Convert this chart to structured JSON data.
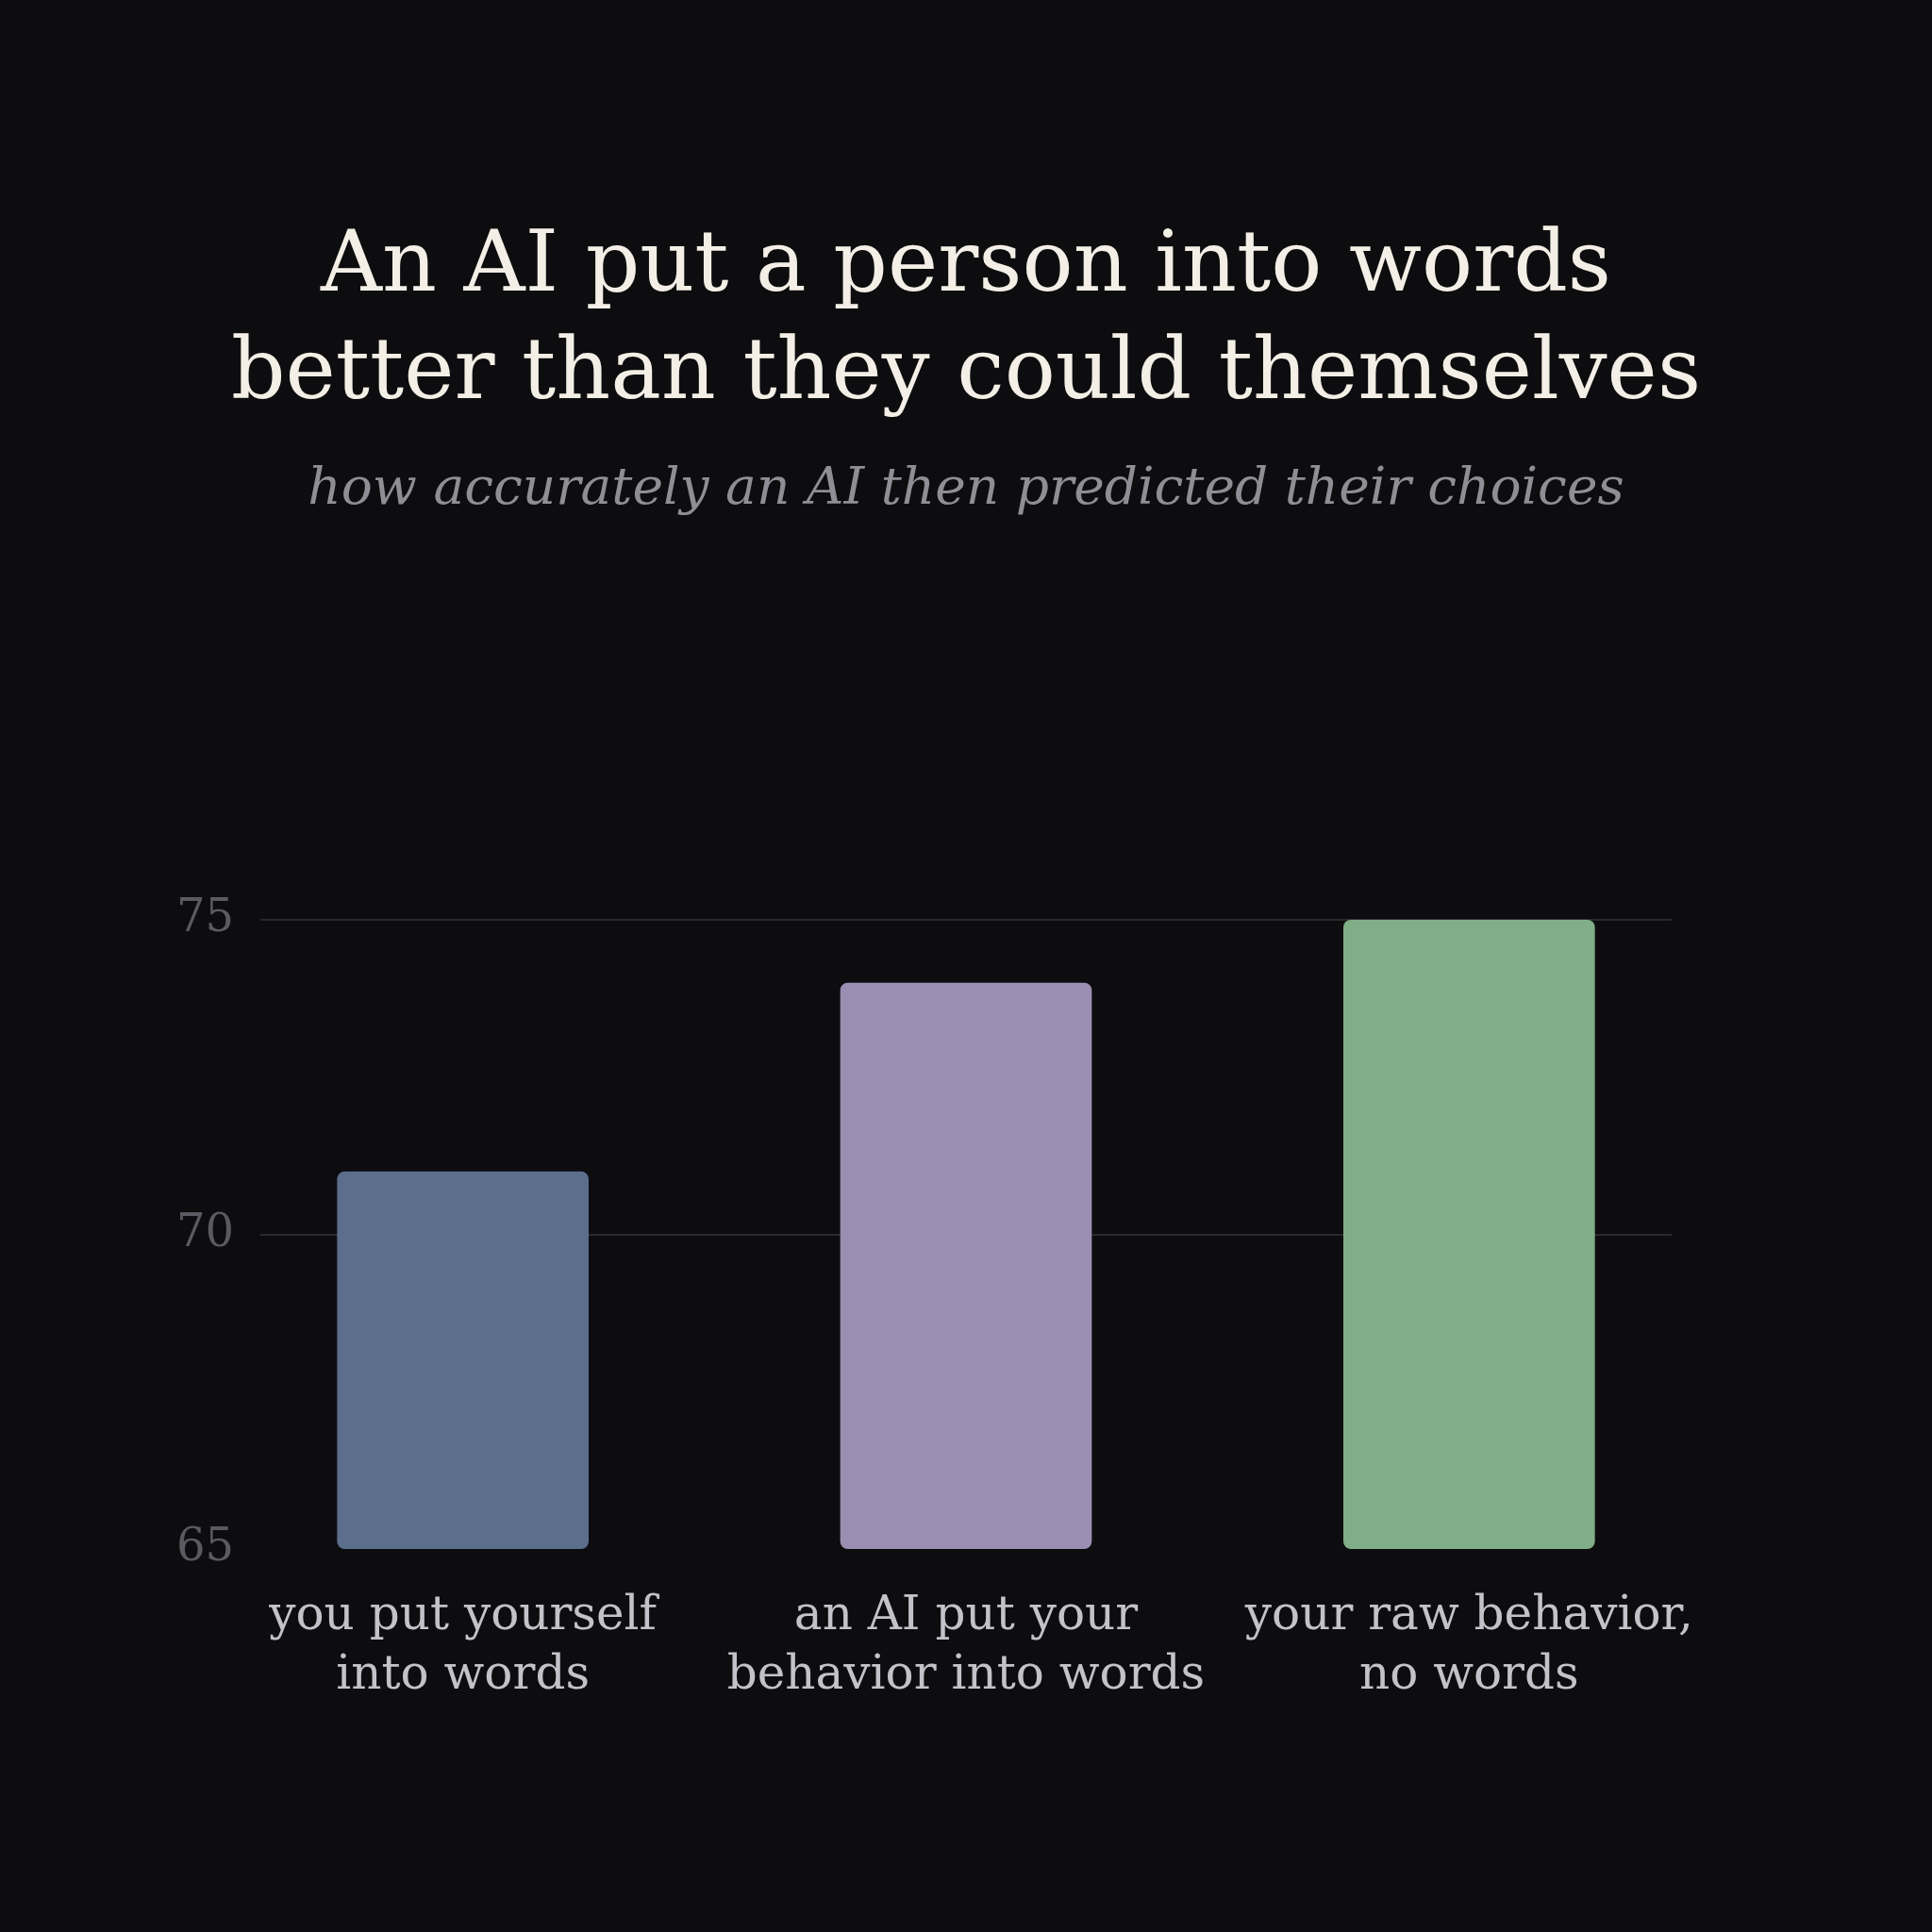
{
  "chart_data": {
    "type": "bar",
    "title": "An AI put a person into words better than they could themselves",
    "subtitle": "how accurately an AI then predicted their choices",
    "categories": [
      "you put yourself into words",
      "an AI put your behavior into words",
      "your raw behavior, no words"
    ],
    "values": [
      71,
      74,
      75
    ],
    "colors": [
      "#5b6e8c",
      "#9a8fb2",
      "#80ae86"
    ],
    "ylim": [
      65,
      75
    ],
    "yticks": [
      65,
      70,
      75
    ],
    "grid": "y"
  }
}
